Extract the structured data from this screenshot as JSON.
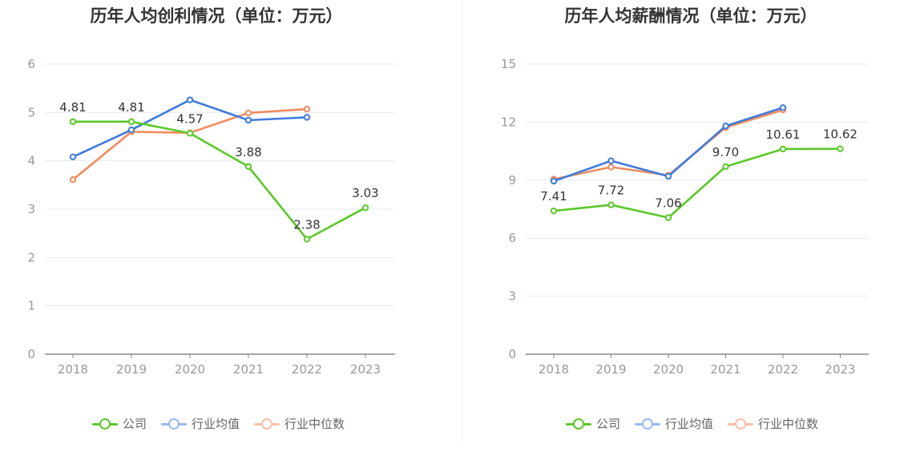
{
  "charts": {
    "profit": {
      "title": "历年人均创利情况（单位：万元）"
    },
    "salary": {
      "title": "历年人均薪酬情况（单位：万元）"
    }
  },
  "legend": {
    "company": "公司",
    "industry_avg": "行业均值",
    "industry_median": "行业中位数"
  },
  "colors": {
    "company": "#5bc928",
    "industry_avg": "#3f7bdc",
    "industry_median": "#f28b5e",
    "grid": "#e6e9f2",
    "axis": "#999999"
  },
  "chart_data": [
    {
      "type": "line",
      "title": "历年人均创利情况（单位：万元）",
      "categories": [
        "2018",
        "2019",
        "2020",
        "2021",
        "2022",
        "2023"
      ],
      "ylim": [
        0,
        6
      ],
      "yticks": [
        0,
        1,
        2,
        3,
        4,
        5,
        6
      ],
      "grid": true,
      "legend_position": "bottom",
      "series": [
        {
          "name": "公司",
          "values": [
            4.81,
            4.81,
            4.57,
            3.88,
            2.38,
            3.03
          ],
          "labels": [
            "4.81",
            "4.81",
            "4.57",
            "3.88",
            "2.38",
            "3.03"
          ]
        },
        {
          "name": "行业均值",
          "values": [
            4.08,
            4.64,
            5.26,
            4.84,
            4.9,
            null
          ]
        },
        {
          "name": "行业中位数",
          "values": [
            3.61,
            4.6,
            4.58,
            4.99,
            5.07,
            null
          ]
        }
      ]
    },
    {
      "type": "line",
      "title": "历年人均薪酬情况（单位：万元）",
      "categories": [
        "2018",
        "2019",
        "2020",
        "2021",
        "2022",
        "2023"
      ],
      "ylim": [
        0,
        15
      ],
      "yticks": [
        0,
        3,
        6,
        9,
        12,
        15
      ],
      "grid": true,
      "legend_position": "bottom",
      "series": [
        {
          "name": "公司",
          "values": [
            7.41,
            7.72,
            7.06,
            9.7,
            10.61,
            10.62
          ],
          "labels": [
            "7.41",
            "7.72",
            "7.06",
            "9.70",
            "10.61",
            "10.62"
          ]
        },
        {
          "name": "行业均值",
          "values": [
            8.95,
            10.0,
            9.2,
            11.8,
            12.75,
            null
          ]
        },
        {
          "name": "行业中位数",
          "values": [
            9.05,
            9.68,
            9.25,
            11.72,
            12.63,
            null
          ]
        }
      ]
    }
  ]
}
